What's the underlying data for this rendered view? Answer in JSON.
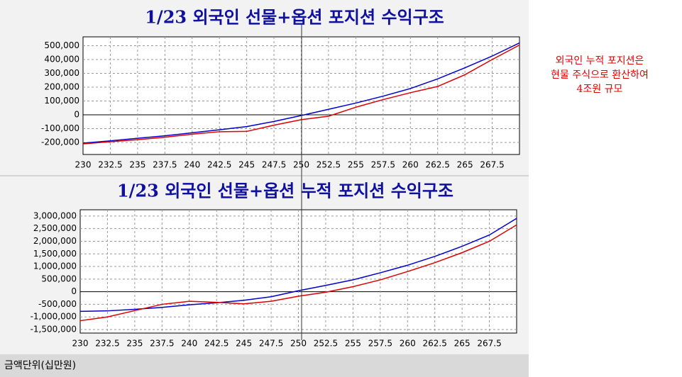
{
  "chart_data": [
    {
      "type": "line",
      "title": "1/23 외국인 선물+옵션 포지션 수익구조",
      "x": [
        230,
        232.5,
        235,
        237.5,
        240,
        242.5,
        245,
        247.5,
        250,
        252.5,
        255,
        257.5,
        260,
        262.5,
        265,
        267.5,
        270
      ],
      "series": [
        {
          "color": "#0000cc",
          "values": [
            -205000,
            -188000,
            -170000,
            -152000,
            -130000,
            -108000,
            -85000,
            -48000,
            -5000,
            40000,
            85000,
            135000,
            190000,
            260000,
            340000,
            425000,
            520000
          ]
        },
        {
          "color": "#dd0000",
          "values": [
            -210000,
            -195000,
            -180000,
            -162000,
            -140000,
            -122000,
            -120000,
            -75000,
            -35000,
            -10000,
            55000,
            110000,
            160000,
            205000,
            290000,
            400000,
            505000
          ]
        }
      ],
      "xlim": [
        230,
        270
      ],
      "xticks": [
        230,
        232.5,
        235,
        237.5,
        240,
        242.5,
        245,
        247.5,
        250,
        252.5,
        255,
        257.5,
        260,
        262.5,
        265,
        267.5
      ],
      "ylim": [
        -287000,
        564000
      ],
      "yticks": [
        {
          "value": -200000,
          "label": "-200,000"
        },
        {
          "value": -100000,
          "label": "-100,000"
        },
        0,
        {
          "value": 100000,
          "label": "100,000"
        },
        {
          "value": 200000,
          "label": "200,000"
        },
        {
          "value": 300000,
          "label": "300,000"
        },
        {
          "value": 400000,
          "label": "400,000"
        },
        {
          "value": 500000,
          "label": "500,000"
        }
      ],
      "grid": true
    },
    {
      "type": "line",
      "title": "1/23 외국인 선물+옵션 누적 포지션 수익구조",
      "x": [
        230,
        232.5,
        235,
        237.5,
        240,
        242.5,
        245,
        247.5,
        250,
        252.5,
        255,
        257.5,
        260,
        262.5,
        265,
        267.5,
        270
      ],
      "series": [
        {
          "color": "#0000cc",
          "values": [
            -780000,
            -760000,
            -700000,
            -620000,
            -520000,
            -440000,
            -340000,
            -200000,
            40000,
            250000,
            470000,
            750000,
            1050000,
            1400000,
            1800000,
            2250000,
            2910000
          ]
        },
        {
          "color": "#dd0000",
          "values": [
            -1150000,
            -1000000,
            -750000,
            -500000,
            -380000,
            -420000,
            -480000,
            -380000,
            -180000,
            -20000,
            200000,
            470000,
            800000,
            1150000,
            1550000,
            2000000,
            2650000
          ]
        }
      ],
      "xlim": [
        230,
        270
      ],
      "xticks": [
        230,
        232.5,
        235,
        237.5,
        240,
        242.5,
        245,
        247.5,
        250,
        252.5,
        255,
        257.5,
        260,
        262.5,
        265,
        267.5
      ],
      "ylim": [
        -1640000,
        3250000
      ],
      "yticks": [
        {
          "value": -1500000,
          "label": "-1,500,000"
        },
        {
          "value": -1000000,
          "label": "-1,000,000"
        },
        {
          "value": -500000,
          "label": "-500,000"
        },
        0,
        {
          "value": 500000,
          "label": "500,000"
        },
        {
          "value": 1000000,
          "label": "1,000,000"
        },
        {
          "value": 1500000,
          "label": "1,500,000"
        },
        {
          "value": 2000000,
          "label": "2,000,000"
        },
        {
          "value": 2500000,
          "label": "2,500,000"
        },
        {
          "value": 3000000,
          "label": "3,000,000"
        }
      ],
      "grid": true
    }
  ],
  "annotation": [
    "외국인 누적 포지션은",
    "현물 주식으로 환산하여",
    "4조원 규모"
  ],
  "footer": "금액단위(십만원)"
}
